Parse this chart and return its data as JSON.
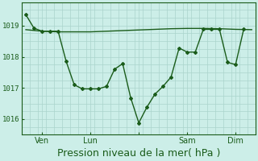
{
  "background_color": "#cceee8",
  "plot_bg_color": "#cceee8",
  "grid_color": "#aad4cc",
  "line_color": "#1a5c1a",
  "tick_color": "#1a5c1a",
  "text_color": "#1a5c1a",
  "xlabel": "Pression niveau de la mer( hPa )",
  "xlabel_fontsize": 9,
  "ytick_labels": [
    "1016",
    "1017",
    "1018",
    "1019"
  ],
  "ytick_values": [
    1016,
    1017,
    1018,
    1019
  ],
  "ylim": [
    1015.55,
    1019.65
  ],
  "xlim": [
    -0.5,
    28.5
  ],
  "xtick_positions": [
    2,
    8,
    14,
    20,
    26
  ],
  "xtick_labels": [
    "Ven",
    "Lun",
    "",
    "Sam",
    "Dim"
  ],
  "series1_x": [
    0,
    2,
    4,
    6,
    8,
    10,
    12,
    14,
    16,
    18,
    20,
    22,
    24,
    26,
    28
  ],
  "series1_y": [
    1018.87,
    1018.82,
    1018.8,
    1018.8,
    1018.8,
    1018.82,
    1018.84,
    1018.86,
    1018.88,
    1018.9,
    1018.91,
    1018.91,
    1018.9,
    1018.88,
    1018.87
  ],
  "series2_x": [
    0,
    1,
    2,
    3,
    4,
    5,
    6,
    7,
    8,
    9,
    10,
    11,
    12,
    13,
    14,
    15,
    16,
    17,
    18,
    19,
    20,
    21,
    22,
    23,
    24,
    25,
    26,
    27
  ],
  "series2_y": [
    1019.35,
    1018.92,
    1018.82,
    1018.82,
    1018.82,
    1017.85,
    1017.1,
    1016.97,
    1016.97,
    1016.97,
    1017.05,
    1017.6,
    1017.78,
    1016.68,
    1015.88,
    1016.38,
    1016.8,
    1017.05,
    1017.35,
    1018.28,
    1018.15,
    1018.15,
    1018.88,
    1018.88,
    1018.88,
    1017.82,
    1017.75,
    1018.88
  ]
}
